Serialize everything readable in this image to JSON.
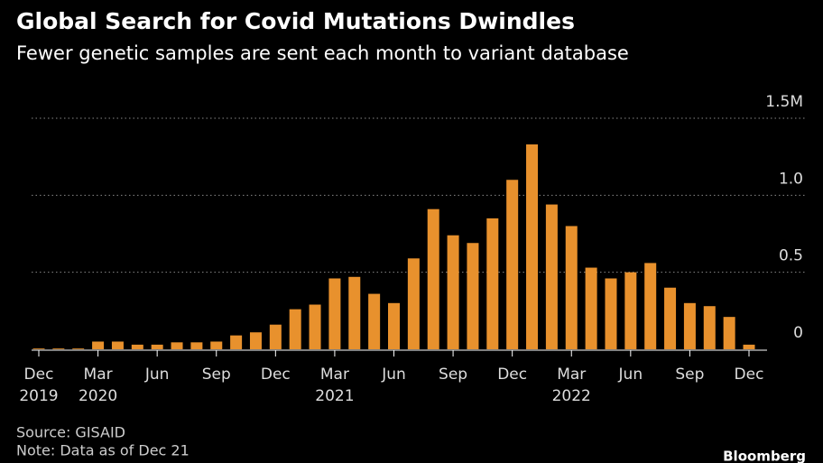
{
  "chart_data": {
    "type": "bar",
    "title": "Global Search for Covid Mutations Dwindles",
    "subtitle": "Fewer genetic samples are sent each month to variant database",
    "categories": [
      "Dec",
      null,
      null,
      "Mar",
      null,
      null,
      "Jun",
      null,
      null,
      "Sep",
      null,
      null,
      "Dec",
      null,
      null,
      "Mar",
      null,
      null,
      "Jun",
      null,
      null,
      "Sep",
      null,
      null,
      "Dec",
      null,
      null,
      "Mar",
      null,
      null,
      "Jun",
      null,
      null,
      "Sep",
      null,
      null,
      "Dec"
    ],
    "category_years": [
      "2019",
      null,
      null,
      "2020",
      null,
      null,
      null,
      null,
      null,
      null,
      null,
      null,
      null,
      null,
      null,
      "2021",
      null,
      null,
      null,
      null,
      null,
      null,
      null,
      null,
      null,
      null,
      null,
      "2022",
      null,
      null,
      null,
      null,
      null,
      null,
      null,
      null,
      null
    ],
    "values": [
      0.005,
      0.005,
      0.005,
      0.05,
      0.05,
      0.03,
      0.03,
      0.045,
      0.045,
      0.05,
      0.09,
      0.11,
      0.16,
      0.26,
      0.29,
      0.46,
      0.47,
      0.36,
      0.3,
      0.59,
      0.91,
      0.74,
      0.69,
      0.85,
      1.1,
      1.33,
      0.94,
      0.8,
      0.53,
      0.46,
      0.5,
      0.56,
      0.4,
      0.3,
      0.28,
      0.21,
      0.03
    ],
    "color": "#e8912d",
    "ylim": [
      0,
      1.5
    ],
    "yticks": [
      0,
      0.5,
      {
        "value": 1,
        "label": "1.0"
      },
      {
        "value": 1.5,
        "label": "1.5M"
      }
    ],
    "grid": true,
    "source": "Source: GISAID",
    "note": "Note: Data as of Dec 21",
    "brand": "Bloomberg"
  }
}
